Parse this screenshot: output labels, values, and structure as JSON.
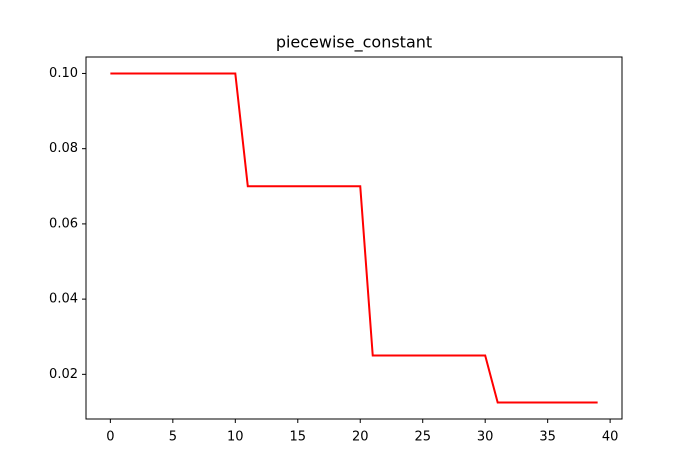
{
  "chart_data": {
    "type": "line",
    "title": "piecewise_constant",
    "x": [
      0,
      1,
      2,
      3,
      4,
      5,
      6,
      7,
      8,
      9,
      10,
      11,
      12,
      13,
      14,
      15,
      16,
      17,
      18,
      19,
      20,
      21,
      22,
      23,
      24,
      25,
      26,
      27,
      28,
      29,
      30,
      31,
      32,
      33,
      34,
      35,
      36,
      37,
      38,
      39
    ],
    "values": [
      0.1,
      0.1,
      0.1,
      0.1,
      0.1,
      0.1,
      0.1,
      0.1,
      0.1,
      0.1,
      0.1,
      0.07,
      0.07,
      0.07,
      0.07,
      0.07,
      0.07,
      0.07,
      0.07,
      0.07,
      0.07,
      0.025,
      0.025,
      0.025,
      0.025,
      0.025,
      0.025,
      0.025,
      0.025,
      0.025,
      0.025,
      0.0125,
      0.0125,
      0.0125,
      0.0125,
      0.0125,
      0.0125,
      0.0125,
      0.0125,
      0.0125
    ],
    "color": "#ff0000",
    "xlim": [
      -1.95,
      40.95
    ],
    "xticks": [
      0,
      5,
      10,
      15,
      20,
      25,
      30,
      35,
      40
    ],
    "ylim": [
      0.008125,
      0.104375
    ],
    "yticks": [
      0.02,
      0.04,
      0.06,
      0.08,
      {
        "value": 0.1,
        "label": "0.10"
      }
    ],
    "grid": false
  }
}
